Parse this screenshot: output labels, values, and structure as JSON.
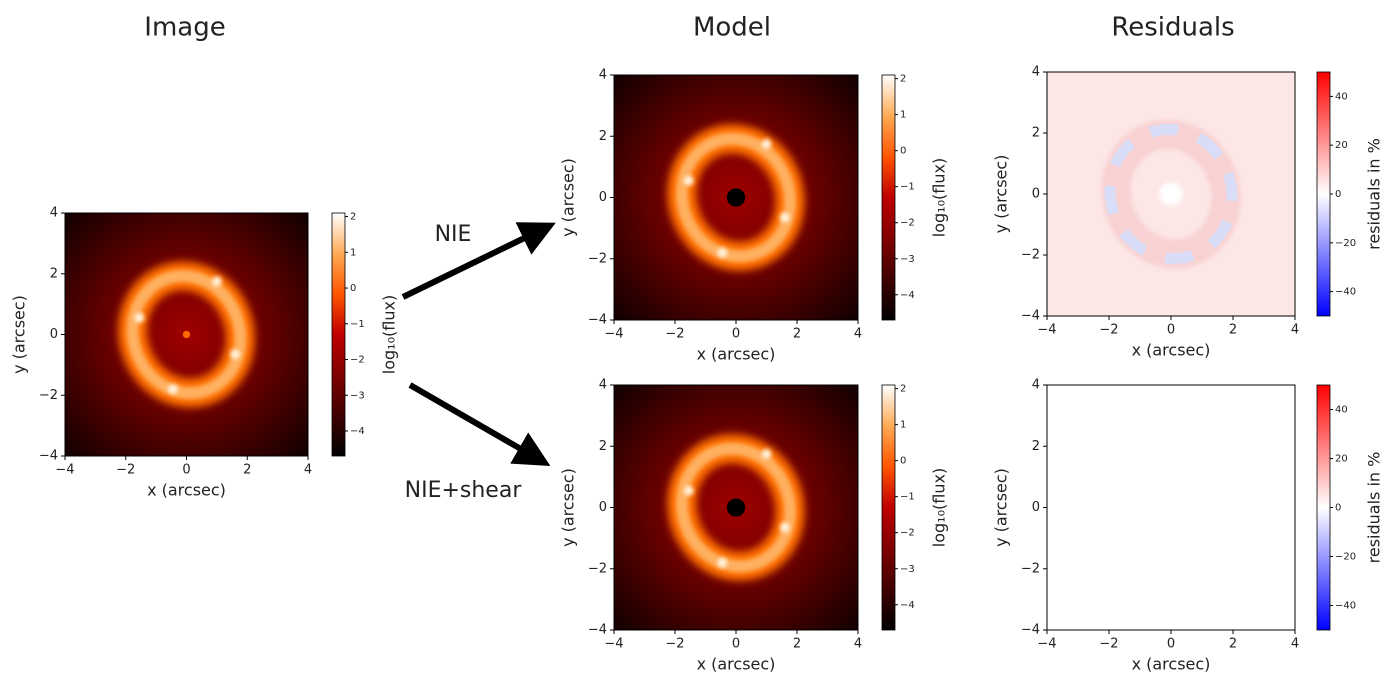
{
  "headers": [
    "Image",
    "Model",
    "Residuals"
  ],
  "arrow_labels": [
    "NIE",
    "NIE+shear"
  ],
  "chart_data": [
    {
      "type": "image",
      "mask": false,
      "xlabel": "x (arcsec)",
      "ylabel": "y (arcsec)",
      "xlim": [
        -4,
        4
      ],
      "ylim": [
        -4,
        4
      ],
      "xticks": [
        {
          "value": -4,
          "label": "−4"
        },
        {
          "value": -2,
          "label": "−2"
        },
        0,
        2,
        4
      ],
      "yticks": [
        {
          "value": -4,
          "label": "−4"
        },
        {
          "value": -2,
          "label": "−2"
        },
        0,
        2,
        4
      ],
      "colorbar": {
        "label": "log₁₀(flux)",
        "colormap": "gist_heat",
        "lim": [
          -4.7,
          2.1
        ],
        "ticks": [
          {
            "value": -4,
            "label": "−4"
          },
          {
            "value": -3,
            "label": "−3"
          },
          {
            "value": -2,
            "label": "−2"
          },
          {
            "value": -1,
            "label": "−1"
          },
          0,
          1,
          2
        ]
      }
    },
    {
      "type": "image",
      "mask": true,
      "xlabel": "x (arcsec)",
      "ylabel": "y (arcsec)",
      "xlim": [
        -4,
        4
      ],
      "ylim": [
        -4,
        4
      ],
      "xticks": [
        {
          "value": -4,
          "label": "−4"
        },
        {
          "value": -2,
          "label": "−2"
        },
        0,
        2,
        4
      ],
      "yticks": [
        {
          "value": -4,
          "label": "−4"
        },
        {
          "value": -2,
          "label": "−2"
        },
        0,
        2,
        4
      ],
      "colorbar": {
        "label": "log₁₀(flux)",
        "colormap": "gist_heat",
        "lim": [
          -4.7,
          2.1
        ],
        "ticks": [
          {
            "value": -4,
            "label": "−4"
          },
          {
            "value": -3,
            "label": "−3"
          },
          {
            "value": -2,
            "label": "−2"
          },
          {
            "value": -1,
            "label": "−1"
          },
          0,
          1,
          2
        ]
      }
    },
    {
      "type": "image",
      "mask": true,
      "xlabel": "x (arcsec)",
      "ylabel": "y (arcsec)",
      "xlim": [
        -4,
        4
      ],
      "ylim": [
        -4,
        4
      ],
      "xticks": [
        {
          "value": -4,
          "label": "−4"
        },
        {
          "value": -2,
          "label": "−2"
        },
        0,
        2,
        4
      ],
      "yticks": [
        {
          "value": -4,
          "label": "−4"
        },
        {
          "value": -2,
          "label": "−2"
        },
        0,
        2,
        4
      ],
      "colorbar": {
        "label": "log₁₀(flux)",
        "colormap": "gist_heat",
        "lim": [
          -4.7,
          2.1
        ],
        "ticks": [
          {
            "value": -4,
            "label": "−4"
          },
          {
            "value": -3,
            "label": "−3"
          },
          {
            "value": -2,
            "label": "−2"
          },
          {
            "value": -1,
            "label": "−1"
          },
          0,
          1,
          2
        ]
      }
    },
    {
      "type": "residual",
      "xlabel": "x (arcsec)",
      "ylabel": "y (arcsec)",
      "xlim": [
        -4,
        4
      ],
      "ylim": [
        -4,
        4
      ],
      "xticks": [
        {
          "value": -4,
          "label": "−4"
        },
        {
          "value": -2,
          "label": "−2"
        },
        0,
        2,
        4
      ],
      "yticks": [
        {
          "value": -4,
          "label": "−4"
        },
        {
          "value": -2,
          "label": "−2"
        },
        0,
        2,
        4
      ],
      "colorbar": {
        "label": "residuals in %",
        "colormap": "bwr",
        "lim": [
          -50,
          50
        ],
        "ticks": [
          {
            "value": -40,
            "label": "−40"
          },
          {
            "value": -20,
            "label": "−20"
          },
          0,
          20,
          40
        ]
      }
    },
    {
      "type": "empty",
      "xlabel": "x (arcsec)",
      "ylabel": "y (arcsec)",
      "xlim": [
        -4,
        4
      ],
      "ylim": [
        -4,
        4
      ],
      "xticks": [
        {
          "value": -4,
          "label": "−4"
        },
        {
          "value": -2,
          "label": "−2"
        },
        0,
        2,
        4
      ],
      "yticks": [
        {
          "value": -4,
          "label": "−4"
        },
        {
          "value": -2,
          "label": "−2"
        },
        0,
        2,
        4
      ],
      "colorbar": {
        "label": "residuals in %",
        "colormap": "bwr",
        "lim": [
          -50,
          50
        ],
        "ticks": [
          {
            "value": -40,
            "label": "−40"
          },
          {
            "value": -20,
            "label": "−20"
          },
          0,
          20,
          40
        ]
      }
    }
  ]
}
